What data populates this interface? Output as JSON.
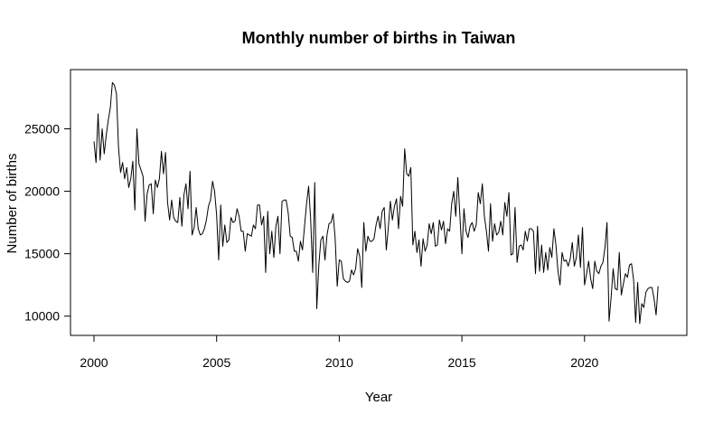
{
  "chart_data": {
    "type": "line",
    "title": "Monthly number of births in Taiwan",
    "xlabel": "Year",
    "ylabel": "Number of births",
    "xlim": [
      2000,
      2023.25
    ],
    "ylim": [
      9400,
      28800
    ],
    "x_ticks": [
      2000,
      2005,
      2010,
      2015,
      2020
    ],
    "y_ticks": [
      10000,
      15000,
      20000,
      25000
    ],
    "grid": false,
    "legend": "none",
    "line_color": "#000000",
    "series": [
      {
        "x_start": "2000-01",
        "x_step": "1 month",
        "values": [
          24000,
          22300,
          26200,
          22500,
          25000,
          23000,
          24500,
          25700,
          26700,
          28700,
          28500,
          27800,
          23500,
          21500,
          22300,
          21000,
          21900,
          20300,
          21000,
          22400,
          18500,
          25000,
          22200,
          21700,
          21200,
          17600,
          19800,
          20500,
          20600,
          18200,
          20900,
          20300,
          21000,
          23200,
          21400,
          23100,
          19100,
          17700,
          19300,
          17900,
          17600,
          17500,
          19500,
          17200,
          19700,
          20600,
          18600,
          21600,
          16500,
          17100,
          18700,
          17000,
          16500,
          16600,
          17000,
          17700,
          18800,
          19300,
          20800,
          20000,
          18100,
          14500,
          18900,
          15600,
          17300,
          15900,
          16100,
          17900,
          17500,
          17600,
          18600,
          18000,
          16800,
          16800,
          15200,
          16600,
          16500,
          16400,
          17300,
          17000,
          18900,
          18900,
          17300,
          18000,
          13500,
          18400,
          15000,
          16800,
          14700,
          17200,
          18000,
          15000,
          19200,
          19300,
          19300,
          18300,
          16400,
          16300,
          15200,
          15200,
          14400,
          16000,
          15300,
          17200,
          19000,
          20400,
          17800,
          13500,
          20700,
          10600,
          14100,
          16100,
          16400,
          14500,
          16500,
          17400,
          17500,
          18200,
          16200,
          12400,
          14500,
          14400,
          13000,
          12800,
          12700,
          12800,
          13700,
          13300,
          13800,
          15400,
          14800,
          12300,
          17500,
          15200,
          16400,
          16000,
          16000,
          16200,
          17300,
          18000,
          17000,
          18400,
          18700,
          15300,
          17100,
          19200,
          17700,
          18800,
          19400,
          17000,
          19600,
          18800,
          23400,
          21400,
          21200,
          21900,
          15700,
          16800,
          15100,
          16100,
          14000,
          16200,
          15200,
          15700,
          17400,
          16600,
          17500,
          15600,
          15700,
          17700,
          16900,
          17600,
          15800,
          17000,
          16800,
          19000,
          20000,
          18000,
          21100,
          18100,
          15000,
          18600,
          16800,
          16300,
          17200,
          17500,
          16800,
          17300,
          19900,
          19000,
          20600,
          18000,
          16800,
          15200,
          19000,
          16000,
          17400,
          16500,
          16700,
          17600,
          16500,
          19100,
          18000,
          19900,
          14900,
          15000,
          18700,
          14300,
          15600,
          15700,
          15300,
          16800,
          16000,
          17000,
          17000,
          16800,
          13400,
          17200,
          13600,
          15700,
          13500,
          15100,
          13700,
          15500,
          14700,
          17000,
          15700,
          13600,
          12500,
          15100,
          14400,
          14500,
          14000,
          14600,
          15900,
          14000,
          14700,
          16500,
          13900,
          17100,
          12500,
          13400,
          14400,
          13000,
          12200,
          14400,
          13600,
          13400,
          14000,
          14300,
          15500,
          17500,
          9600,
          11500,
          13800,
          12200,
          12100,
          15100,
          11700,
          12600,
          13400,
          13100,
          14100,
          14200,
          12900,
          9500,
          12700,
          9400,
          11000,
          10700,
          11900,
          12200,
          12300,
          12300,
          11400,
          10100,
          12400
        ]
      }
    ]
  }
}
